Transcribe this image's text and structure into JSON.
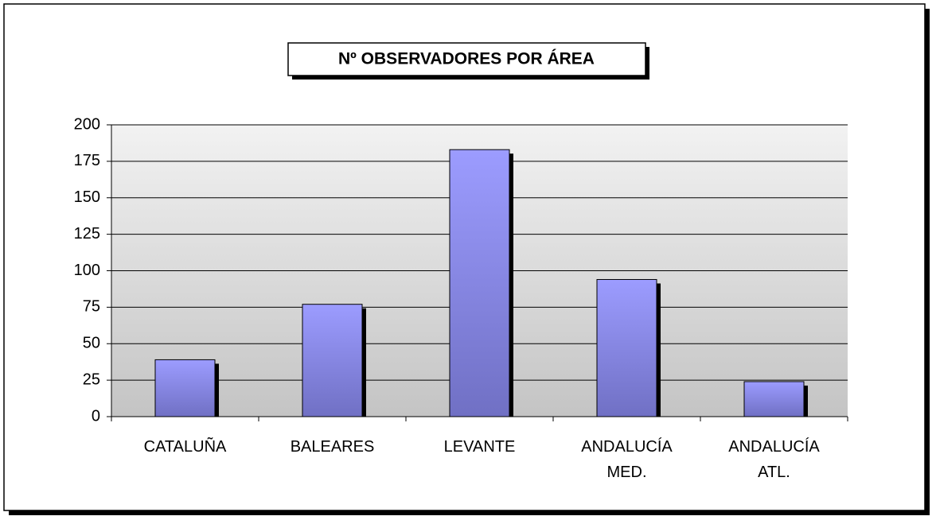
{
  "chart_data": {
    "type": "bar",
    "title": "Nº OBSERVADORES POR ÁREA",
    "categories": [
      "CATALUÑA",
      "BALEARES",
      "LEVANTE",
      "ANDALUCÍA MED.",
      "ANDALUCÍA ATL."
    ],
    "values": [
      39,
      77,
      183,
      94,
      24
    ],
    "color": "#9999ff",
    "ylim": [
      0,
      200
    ],
    "yticks": [
      0,
      25,
      50,
      75,
      100,
      125,
      150,
      175,
      200
    ],
    "grid": true
  }
}
